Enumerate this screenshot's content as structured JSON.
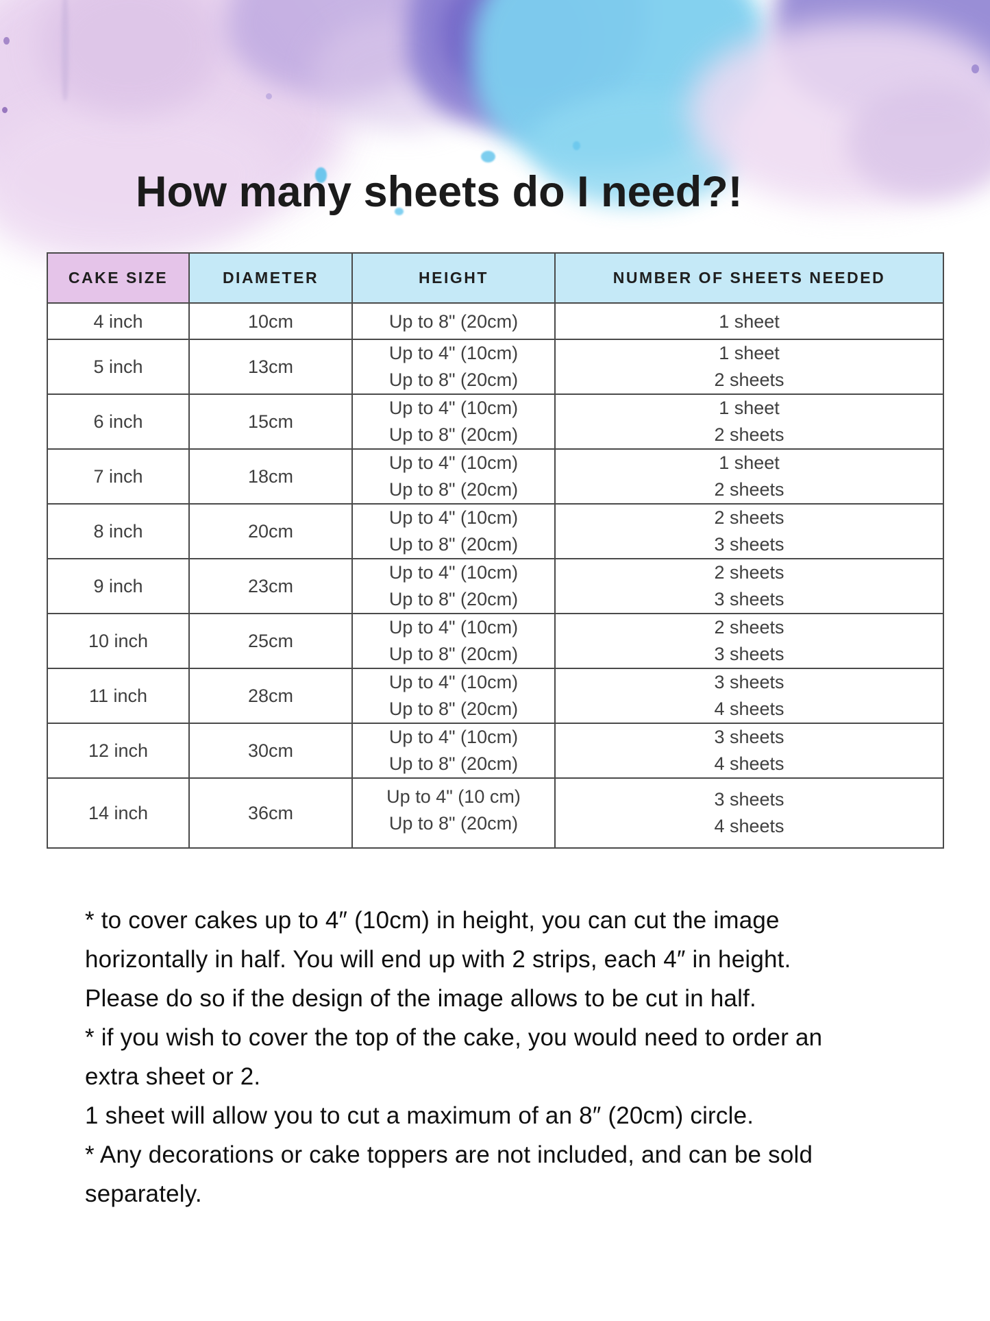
{
  "page": {
    "title": "How many sheets do I need?!"
  },
  "theme": {
    "header-pink": "#e5c4e9",
    "header-blue": "#c5e9f7",
    "table-border": "#4a4a4a",
    "cell-text": "#3f3f3f",
    "title-text": "#1b1b1b",
    "wc-pink": "#e7d0ee",
    "wc-pink-light": "#eedbf2",
    "wc-lavender": "#c3aee2",
    "wc-indigo": "#8b7fd2",
    "wc-indigo-deep": "#7468c8",
    "wc-cyan": "#7ecfef",
    "wc-purple": "#9488d4"
  },
  "table": {
    "columns": [
      "CAKE SIZE",
      "DIAMETER",
      "HEIGHT",
      "NUMBER OF SHEETS NEEDED"
    ],
    "rows": [
      {
        "size": "4 inch",
        "diameter": "10cm",
        "heights": [
          "Up to 8\" (20cm)"
        ],
        "sheets": [
          "1 sheet"
        ]
      },
      {
        "size": "5 inch",
        "diameter": "13cm",
        "heights": [
          "Up to 4\" (10cm)",
          "Up to 8\" (20cm)"
        ],
        "sheets": [
          "1 sheet",
          "2 sheets"
        ]
      },
      {
        "size": "6 inch",
        "diameter": "15cm",
        "heights": [
          "Up to 4\" (10cm)",
          "Up to 8\" (20cm)"
        ],
        "sheets": [
          "1 sheet",
          "2 sheets"
        ]
      },
      {
        "size": "7 inch",
        "diameter": "18cm",
        "heights": [
          "Up to 4\" (10cm)",
          "Up to 8\" (20cm)"
        ],
        "sheets": [
          "1 sheet",
          "2 sheets"
        ]
      },
      {
        "size": "8 inch",
        "diameter": "20cm",
        "heights": [
          "Up to 4\" (10cm)",
          "Up to 8\" (20cm)"
        ],
        "sheets": [
          "2 sheets",
          "3 sheets"
        ]
      },
      {
        "size": "9 inch",
        "diameter": "23cm",
        "heights": [
          "Up to 4\" (10cm)",
          "Up to 8\" (20cm)"
        ],
        "sheets": [
          "2 sheets",
          "3 sheets"
        ]
      },
      {
        "size": "10 inch",
        "diameter": "25cm",
        "heights": [
          "Up to 4\" (10cm)",
          "Up to 8\" (20cm)"
        ],
        "sheets": [
          "2 sheets",
          "3 sheets"
        ]
      },
      {
        "size": "11 inch",
        "diameter": "28cm",
        "heights": [
          "Up to 4\" (10cm)",
          "Up to 8\" (20cm)"
        ],
        "sheets": [
          "3 sheets",
          "4 sheets"
        ]
      },
      {
        "size": "12 inch",
        "diameter": "30cm",
        "heights": [
          "Up to 4\" (10cm)",
          "Up to 8\" (20cm)"
        ],
        "sheets": [
          "3 sheets",
          "4 sheets"
        ]
      },
      {
        "size": "14 inch",
        "diameter": "36cm",
        "heights": [
          "Up to 4\" (10 cm)",
          "Up to 8\" (20cm)"
        ],
        "sheets": [
          "3 sheets",
          "4 sheets"
        ],
        "tall": true,
        "height_align": "top"
      }
    ]
  },
  "footnotes": {
    "lines": [
      "* to cover cakes up to 4″ (10cm) in height, you can cut the image",
      "horizontally in half. You will end up with 2 strips, each 4″ in height.",
      "Please do so if the design of the image allows to be cut in half.",
      "* if you wish to cover the top of the cake, you would need to order an",
      "extra sheet or 2.",
      "1 sheet will allow you to cut a maximum of an 8″ (20cm) circle.",
      "* Any decorations or cake toppers are not included, and can be sold",
      "separately."
    ]
  }
}
